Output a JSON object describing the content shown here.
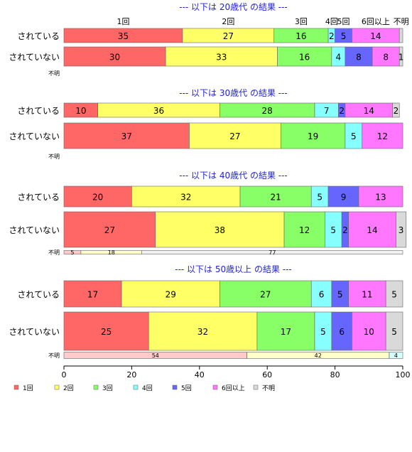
{
  "chart_data": {
    "type": "bar",
    "orientation": "horizontal",
    "stacked": true,
    "percent": true,
    "xlim": [
      0,
      100
    ],
    "xticks": [
      0,
      20,
      40,
      60,
      80,
      100
    ],
    "categories_header": [
      "1回",
      "2回",
      "3回",
      "4回",
      "5回",
      "6回以上",
      "不明"
    ],
    "colors": [
      "#ff6666",
      "#ffff66",
      "#88ff66",
      "#88ffff",
      "#6666ff",
      "#ff77ff",
      "#d9d9d9"
    ],
    "groups": [
      {
        "title": "--- 以下は 20歳代 の結果 ---",
        "rows": [
          {
            "label": "されている",
            "values": [
              35,
              27,
              16,
              2,
              5,
              14,
              1
            ],
            "value_labels": [
              "35",
              "27",
              "16",
              "2",
              "5",
              "14",
              ""
            ]
          },
          {
            "label": "されていない",
            "values": [
              30,
              33,
              16,
              4,
              8,
              8,
              1
            ],
            "value_labels": [
              "30",
              "33",
              "16",
              "4",
              "8",
              "8",
              "1"
            ]
          }
        ],
        "unknown": {
          "label": "不明",
          "values": [],
          "value_labels": []
        }
      },
      {
        "title": "--- 以下は 30歳代 の結果 ---",
        "rows": [
          {
            "label": "されている",
            "values": [
              10,
              36,
              28,
              7,
              2,
              14,
              2
            ],
            "value_labels": [
              "10",
              "36",
              "28",
              "7",
              "2",
              "14",
              "2"
            ]
          },
          {
            "label": "されていない",
            "values": [
              37,
              27,
              19,
              5,
              0,
              12,
              0
            ],
            "value_labels": [
              "37",
              "27",
              "19",
              "5",
              "",
              "12",
              ""
            ]
          }
        ],
        "unknown": {
          "label": "不明",
          "values": [],
          "value_labels": []
        }
      },
      {
        "title": "--- 以下は 40歳代 の結果 ---",
        "rows": [
          {
            "label": "されている",
            "values": [
              20,
              32,
              21,
              5,
              9,
              13,
              0
            ],
            "value_labels": [
              "20",
              "32",
              "21",
              "5",
              "9",
              "13",
              ""
            ]
          },
          {
            "label": "されていない",
            "values": [
              27,
              38,
              12,
              5,
              2,
              14,
              3
            ],
            "value_labels": [
              "27",
              "38",
              "12",
              "5",
              "2",
              "14",
              "3"
            ]
          }
        ],
        "unknown": {
          "label": "不明",
          "values": [
            5,
            18,
            0,
            0,
            0,
            0,
            77
          ],
          "value_labels": [
            "5",
            "18",
            "",
            "",
            "",
            "",
            "77"
          ]
        }
      },
      {
        "title": "--- 以下は 50歳以上 の結果 ---",
        "rows": [
          {
            "label": "されている",
            "values": [
              17,
              29,
              27,
              6,
              5,
              11,
              5
            ],
            "value_labels": [
              "17",
              "29",
              "27",
              "6",
              "5",
              "11",
              "5"
            ]
          },
          {
            "label": "されていない",
            "values": [
              25,
              32,
              17,
              5,
              6,
              10,
              5
            ],
            "value_labels": [
              "25",
              "32",
              "17",
              "5",
              "6",
              "10",
              "5"
            ]
          }
        ],
        "unknown": {
          "label": "不明",
          "values": [
            54,
            42,
            0,
            4,
            0,
            0,
            0
          ],
          "value_labels": [
            "54",
            "42",
            "",
            "4",
            "",
            "",
            ""
          ]
        }
      }
    ],
    "legend": [
      "1回",
      "2回",
      "3回",
      "4回",
      "5回",
      "6回以上",
      "不明"
    ],
    "legend_position": "bottom"
  }
}
